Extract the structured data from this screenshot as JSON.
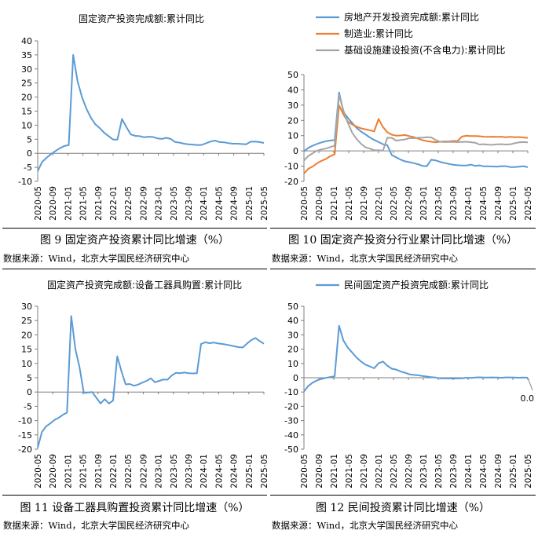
{
  "colors": {
    "blue": "#5b9bd5",
    "orange": "#ed7d31",
    "gray": "#a5a5a5",
    "axis": "#7f7f7f"
  },
  "captions": {
    "c1": "图 9  固定资产投资累计同比增速（%）",
    "c2": "图 10 固定资产投资分行业累计同比增速（%）",
    "c3": "图 11 设备工器具购置投资累计同比增速（%）",
    "c4": "图 12 民间投资累计同比增速（%）"
  },
  "source": "数据来源：Wind，北京大学国民经济研究中心",
  "chart_data": [
    {
      "type": "line",
      "title": "固定资产投资完成额:累计同比",
      "x_ticks": [
        "2020-05",
        "2020-09",
        "2021-01",
        "2021-05",
        "2021-09",
        "2022-01",
        "2022-05",
        "2022-09",
        "2023-01",
        "2023-05",
        "2023-09",
        "2024-01",
        "2024-05",
        "2024-09",
        "2025-01",
        "2025-05"
      ],
      "ylim": [
        -10,
        40
      ],
      "y_ticks": [
        -10,
        -5,
        0,
        5,
        10,
        15,
        20,
        25,
        30,
        35,
        40
      ],
      "series": [
        {
          "values": [
            -6.3,
            -3.1,
            -1.6,
            -0.3,
            0.8,
            1.8,
            2.6,
            2.9,
            35.0,
            25.6,
            19.9,
            15.8,
            12.6,
            10.3,
            8.9,
            7.3,
            6.1,
            4.9,
            4.9,
            12.2,
            9.3,
            6.7,
            6.2,
            6.1,
            5.7,
            5.9,
            5.8,
            5.3,
            5.1,
            5.5,
            5.1,
            4.0,
            3.8,
            3.4,
            3.2,
            3.1,
            2.9,
            3.0,
            3.6,
            4.2,
            4.5,
            4.0,
            3.9,
            3.6,
            3.4,
            3.4,
            3.3,
            3.2,
            4.1,
            4.2,
            4.0,
            3.7
          ]
        }
      ]
    },
    {
      "type": "line",
      "x_ticks": [
        "2020-05",
        "2020-09",
        "2021-01",
        "2021-05",
        "2021-09",
        "2022-01",
        "2022-05",
        "2022-09",
        "2023-01",
        "2023-05",
        "2023-09",
        "2024-01",
        "2024-05",
        "2024-09",
        "2025-01",
        "2025-05"
      ],
      "ylim": [
        -20,
        50
      ],
      "y_ticks": [
        -20,
        -10,
        0,
        10,
        20,
        30,
        40,
        50
      ],
      "series": [
        {
          "name": "房地产开发投资完成额:累计同比",
          "values": [
            -0.3,
            2.0,
            3.4,
            4.6,
            5.6,
            6.3,
            6.8,
            7.0,
            38.3,
            25.6,
            21.6,
            18.3,
            15.0,
            12.7,
            10.9,
            8.8,
            7.2,
            5.8,
            4.4,
            3.7,
            -2.7,
            -4.2,
            -5.7,
            -6.8,
            -7.4,
            -8.0,
            -8.8,
            -9.8,
            -10.0,
            -5.8,
            -6.2,
            -7.2,
            -7.9,
            -8.5,
            -9.1,
            -9.4,
            -9.6,
            -9.6,
            -9.0,
            -9.8,
            -9.5,
            -10.1,
            -10.1,
            -10.2,
            -10.3,
            -10.0,
            -10.0,
            -10.6,
            -10.6,
            -10.3,
            -10.0,
            -10.7
          ]
        },
        {
          "name": "制造业:累计同比",
          "values": [
            -14.8,
            -11.7,
            -10.2,
            -8.1,
            -6.5,
            -5.3,
            -3.5,
            -2.2,
            29.8,
            23.8,
            19.2,
            17.3,
            15.9,
            14.8,
            14.2,
            13.5,
            12.8,
            20.9,
            15.6,
            12.2,
            10.6,
            10.0,
            10.1,
            10.4,
            9.7,
            9.1,
            8.1,
            7.0,
            6.4,
            6.0,
            5.7,
            6.0,
            6.2,
            6.2,
            6.5,
            6.5,
            9.4,
            9.9,
            9.7,
            9.7,
            9.6,
            9.3,
            9.2,
            9.3,
            9.2,
            9.3,
            9.0,
            9.2,
            9.0,
            9.1,
            8.8,
            8.5
          ]
        },
        {
          "name": "基础设施建设投资(不含电力):累计同比",
          "values": [
            -6.3,
            -3.3,
            -1.5,
            0.2,
            1.0,
            1.5,
            2.5,
            3.4,
            36.6,
            26.4,
            18.4,
            11.8,
            7.8,
            4.7,
            2.4,
            1.5,
            0.5,
            0.4,
            0.2,
            8.6,
            8.5,
            6.7,
            7.1,
            7.5,
            8.3,
            8.3,
            8.6,
            8.7,
            9.0,
            8.8,
            7.2,
            6.0,
            5.8,
            5.9,
            5.9,
            5.8,
            5.9,
            6.0,
            5.7,
            5.4,
            4.2,
            4.4,
            4.1,
            4.0,
            4.3,
            4.4,
            4.2,
            4.3,
            5.0,
            5.6,
            5.8,
            5.6
          ]
        }
      ]
    },
    {
      "type": "line",
      "title": "固定资产投资完成额:设备工器具购置:累计同比",
      "x_ticks": [
        "2020-05",
        "2020-09",
        "2021-01",
        "2021-05",
        "2021-09",
        "2022-01",
        "2022-05",
        "2022-09",
        "2023-01",
        "2023-05",
        "2023-09",
        "2024-01",
        "2024-05",
        "2024-09",
        "2025-01",
        "2025-05"
      ],
      "ylim": [
        -20,
        30
      ],
      "y_ticks": [
        -20,
        -15,
        -10,
        -5,
        0,
        5,
        10,
        15,
        20,
        25,
        30
      ],
      "series": [
        {
          "values": [
            -19.5,
            -14.0,
            -12.0,
            -11.0,
            -9.8,
            -9.0,
            -8.0,
            -7.2,
            26.6,
            15.0,
            8.6,
            -0.3,
            -0.2,
            0.0,
            -2.0,
            -4.0,
            -2.5,
            -4.0,
            -3.0,
            12.5,
            7.2,
            2.7,
            2.8,
            2.2,
            2.6,
            3.3,
            3.9,
            4.8,
            3.4,
            3.9,
            4.4,
            4.3,
            5.8,
            6.7,
            6.6,
            6.8,
            6.6,
            6.5,
            6.6,
            16.8,
            17.4,
            17.1,
            17.3,
            17.0,
            16.8,
            16.6,
            16.3,
            16.0,
            15.7,
            15.6,
            17.0,
            18.2,
            18.9,
            17.8,
            16.9
          ]
        }
      ]
    },
    {
      "type": "line",
      "x_ticks": [
        "2020-05",
        "2020-09",
        "2021-01",
        "2021-05",
        "2021-09",
        "2022-01",
        "2022-05",
        "2022-09",
        "2023-01",
        "2023-05",
        "2023-09",
        "2024-01",
        "2024-05",
        "2024-09",
        "2025-01",
        "2025-05"
      ],
      "ylim": [
        -50,
        50
      ],
      "y_ticks": [
        -50,
        -40,
        -30,
        -20,
        -10,
        0,
        10,
        20,
        30,
        40,
        50
      ],
      "series": [
        {
          "name": "民间固定资产投资完成额:累计同比",
          "values": [
            -9.6,
            -5.7,
            -3.4,
            -1.8,
            -0.8,
            -0.1,
            0.5,
            1.0,
            36.4,
            26.0,
            21.0,
            17.5,
            14.0,
            11.4,
            9.2,
            7.9,
            6.6,
            10.1,
            11.3,
            8.4,
            6.3,
            5.7,
            4.4,
            3.5,
            2.4,
            2.0,
            1.7,
            1.2,
            0.8,
            0.4,
            0.1,
            -0.4,
            -0.5,
            -0.4,
            -0.6,
            -0.5,
            -0.4,
            0.0,
            -0.1,
            0.1,
            0.3,
            0.1,
            0.1,
            0.2,
            0.1,
            0.0,
            0.2,
            0.2,
            0.1,
            0.0,
            0.1,
            0.0
          ]
        }
      ],
      "end_label": "0.0"
    }
  ]
}
